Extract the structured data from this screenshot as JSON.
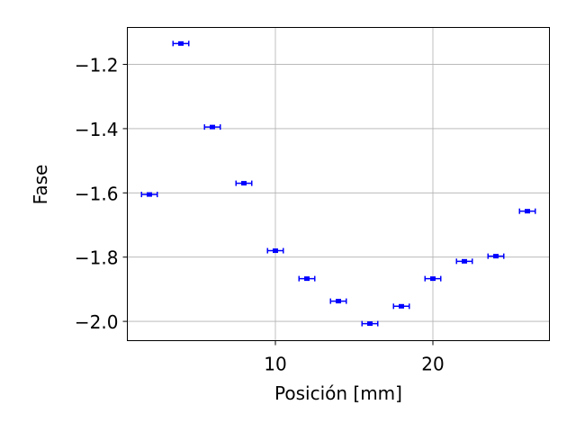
{
  "chart_data": {
    "type": "scatter",
    "xlabel": "Posición [mm]",
    "ylabel": "Fase",
    "xlim": [
      0.6,
      27.4
    ],
    "ylim": [
      -2.06,
      -1.085
    ],
    "xticks": [
      10,
      20
    ],
    "xtick_labels": [
      "10",
      "20"
    ],
    "yticks": [
      -2.0,
      -1.8,
      -1.6,
      -1.4,
      -1.2
    ],
    "ytick_labels": [
      "−2.0",
      "−1.8",
      "−1.6",
      "−1.4",
      "−1.2"
    ],
    "grid": true,
    "marker_color": "#0000ff",
    "x_error": 0.5,
    "y_error": 0.005,
    "points": [
      {
        "x": 2,
        "y": -1.605
      },
      {
        "x": 4,
        "y": -1.135
      },
      {
        "x": 6,
        "y": -1.395
      },
      {
        "x": 8,
        "y": -1.57
      },
      {
        "x": 10,
        "y": -1.78
      },
      {
        "x": 12,
        "y": -1.867
      },
      {
        "x": 14,
        "y": -1.937
      },
      {
        "x": 16,
        "y": -2.007
      },
      {
        "x": 18,
        "y": -1.953
      },
      {
        "x": 20,
        "y": -1.867
      },
      {
        "x": 22,
        "y": -1.813
      },
      {
        "x": 24,
        "y": -1.797
      },
      {
        "x": 26,
        "y": -1.657
      }
    ]
  }
}
